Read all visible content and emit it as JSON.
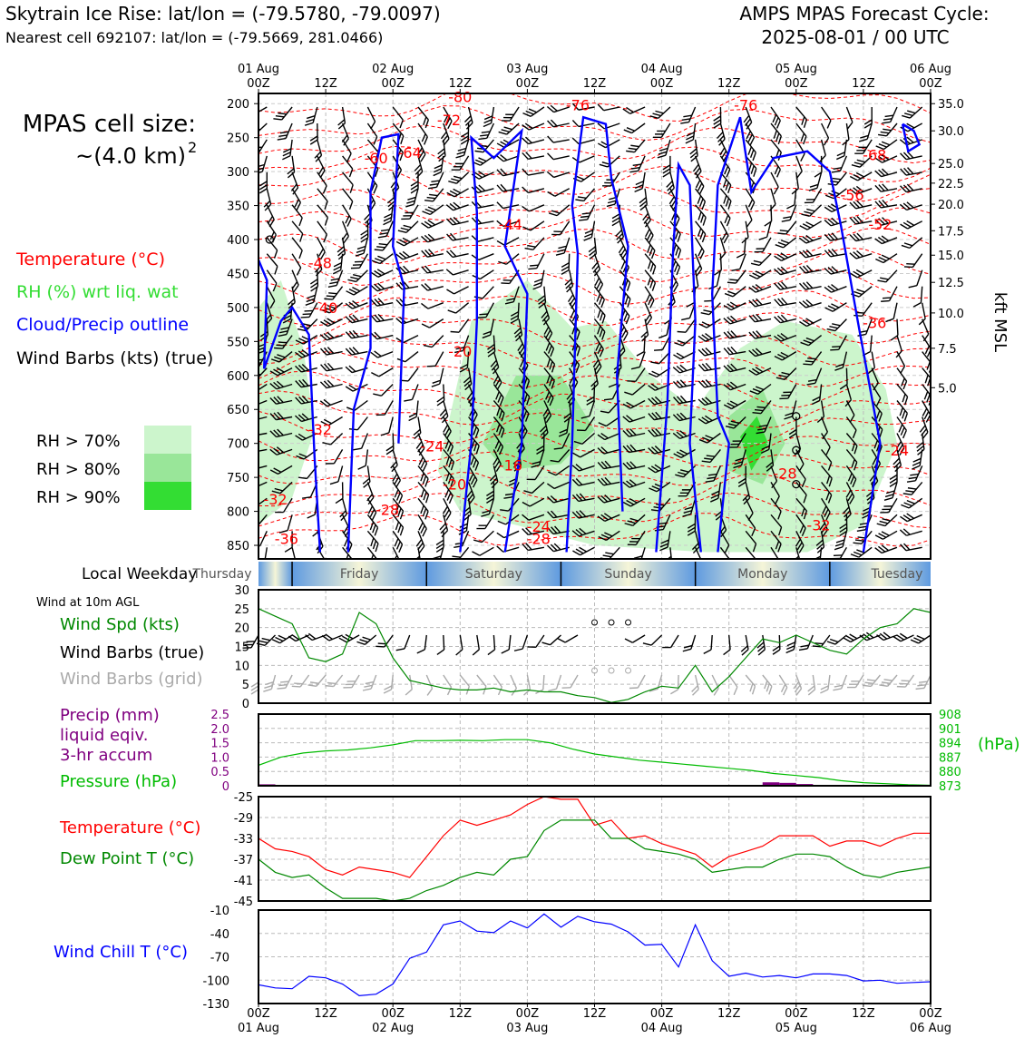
{
  "header": {
    "title_left": "Skytrain Ice Rise: lat/lon = (-79.5780, -79.0097)",
    "subtitle_left": "Nearest cell 692107: lat/lon = (-79.5669, 281.0466)",
    "title_right_1": "AMPS MPAS Forecast Cycle:",
    "title_right_2": "2025-08-01 / 00 UTC"
  },
  "left_panel": {
    "cell_size_label": "MPAS cell size:",
    "cell_size_value": "~(4.0 km)",
    "cell_size_exp": "2",
    "legend_temperature": "Temperature (°C)",
    "legend_rh": "RH (%) wrt liq. wat",
    "legend_cloud": "Cloud/Precip outline",
    "legend_wind": "Wind Barbs (kts) (true)",
    "rh_70": "RH > 70%",
    "rh_80": "RH > 80%",
    "rh_90": "RH > 90%",
    "local_weekday_label": "Local Weekday",
    "wind10m_label": "Wind at 10m AGL",
    "wind_spd_label": "Wind Spd (kts)",
    "wind_barbs_true_label": "Wind Barbs (true)",
    "wind_barbs_grid_label": "Wind Barbs (grid)",
    "precip_label_1": "Precip (mm)",
    "precip_label_2": "liquid eqiv.",
    "precip_label_3": "3-hr accum",
    "pressure_label": "Pressure (hPa)",
    "temp_label": "Temperature (°C)",
    "dewpoint_label": "Dew Point T (°C)",
    "windchill_label": "Wind Chill T (°C)"
  },
  "colors": {
    "temperature": "#ff0000",
    "rh_legend_text": "#33dd33",
    "cloud": "#0000ff",
    "rh70": "#ccf5cc",
    "rh80": "#99e699",
    "rh90": "#33dd33",
    "wind_spd": "#008800",
    "wind_grid": "#aaaaaa",
    "precip": "#800080",
    "pressure": "#00bb00",
    "dewpoint": "#008800",
    "windchill": "#0000ff"
  },
  "time_axis": {
    "top_ticks": [
      "01 Aug\n00Z",
      "12Z",
      "02 Aug\n00Z",
      "12Z",
      "03 Aug\n00Z",
      "12Z",
      "04 Aug\n00Z",
      "12Z",
      "05 Aug\n00Z",
      "12Z",
      "06 Aug\n00Z"
    ],
    "bottom_ticks": [
      "00Z\n01 Aug",
      "12Z",
      "00Z\n02 Aug",
      "12Z",
      "00Z\n03 Aug",
      "12Z",
      "00Z\n04 Aug",
      "12Z",
      "00Z\n05 Aug",
      "12Z",
      "00Z\n06 Aug"
    ]
  },
  "weekdays": [
    "Thursday",
    "Friday",
    "Saturday",
    "Sunday",
    "Monday",
    "Tuesday"
  ],
  "chart_data": [
    {
      "type": "heatmap",
      "name": "cross-section",
      "x_hours": [
        0,
        120
      ],
      "y_pressure_ticks": [
        200,
        250,
        300,
        350,
        400,
        450,
        500,
        550,
        600,
        650,
        700,
        750,
        800,
        850
      ],
      "ylim": [
        185,
        870
      ],
      "kft_ticks": [
        {
          "p": 200,
          "label": "35.0"
        },
        {
          "p": 240,
          "label": "30.0"
        },
        {
          "p": 288,
          "label": "25.0"
        },
        {
          "p": 317,
          "label": "22.5"
        },
        {
          "p": 348,
          "label": "20.0"
        },
        {
          "p": 387,
          "label": "17.5"
        },
        {
          "p": 423,
          "label": "15.0"
        },
        {
          "p": 463,
          "label": "12.5"
        },
        {
          "p": 508,
          "label": "10.0"
        },
        {
          "p": 560,
          "label": "7.5"
        },
        {
          "p": 618,
          "label": "5.0"
        }
      ],
      "ylabel_right": "kft MSL",
      "temperature_labels": [
        {
          "h": 36,
          "p": 198,
          "t": "-80"
        },
        {
          "h": 34,
          "p": 232,
          "t": "-72"
        },
        {
          "h": 57,
          "p": 210,
          "t": "-76"
        },
        {
          "h": 87,
          "p": 210,
          "t": "-76"
        },
        {
          "h": 27,
          "p": 280,
          "t": "-64"
        },
        {
          "h": 21,
          "p": 288,
          "t": "-60"
        },
        {
          "h": 110,
          "p": 283,
          "t": "-68"
        },
        {
          "h": 106,
          "p": 342,
          "t": "-56"
        },
        {
          "h": 111,
          "p": 385,
          "t": "-52"
        },
        {
          "h": 45,
          "p": 385,
          "t": "-44"
        },
        {
          "h": 11,
          "p": 442,
          "t": "-48"
        },
        {
          "h": 12,
          "p": 508,
          "t": "-40"
        },
        {
          "h": 110,
          "p": 530,
          "t": "-36"
        },
        {
          "h": 36,
          "p": 572,
          "t": "-20"
        },
        {
          "h": 11,
          "p": 687,
          "t": "-32"
        },
        {
          "h": 31,
          "p": 712,
          "t": "-24"
        },
        {
          "h": 114,
          "p": 718,
          "t": "-24"
        },
        {
          "h": 45,
          "p": 740,
          "t": "-16"
        },
        {
          "h": 35,
          "p": 768,
          "t": "-20"
        },
        {
          "h": 94,
          "p": 752,
          "t": "-28"
        },
        {
          "h": 3,
          "p": 790,
          "t": "-32"
        },
        {
          "h": 23,
          "p": 805,
          "t": "-28"
        },
        {
          "h": 5,
          "p": 848,
          "t": "-36"
        },
        {
          "h": 50,
          "p": 830,
          "t": "-24"
        },
        {
          "h": 50,
          "p": 848,
          "t": "-28"
        },
        {
          "h": 100,
          "p": 828,
          "t": "-32"
        }
      ],
      "rh_regions": [
        {
          "level": 70,
          "pts": [
            [
              0,
              500
            ],
            [
              4,
              460
            ],
            [
              8,
              560
            ],
            [
              10,
              680
            ],
            [
              6,
              780
            ],
            [
              0,
              820
            ]
          ]
        },
        {
          "level": 70,
          "pts": [
            [
              32,
              740
            ],
            [
              38,
              520
            ],
            [
              48,
              460
            ],
            [
              56,
              530
            ],
            [
              62,
              520
            ],
            [
              70,
              600
            ],
            [
              78,
              650
            ],
            [
              86,
              560
            ],
            [
              94,
              520
            ],
            [
              106,
              540
            ],
            [
              112,
              620
            ],
            [
              114,
              700
            ],
            [
              108,
              820
            ],
            [
              98,
              860
            ],
            [
              80,
              860
            ],
            [
              60,
              850
            ],
            [
              46,
              820
            ],
            [
              36,
              800
            ]
          ]
        },
        {
          "level": 80,
          "pts": [
            [
              40,
              700
            ],
            [
              46,
              600
            ],
            [
              54,
              600
            ],
            [
              60,
              680
            ],
            [
              54,
              730
            ],
            [
              44,
              740
            ]
          ]
        },
        {
          "level": 80,
          "pts": [
            [
              84,
              660
            ],
            [
              90,
              620
            ],
            [
              94,
              700
            ],
            [
              90,
              760
            ],
            [
              84,
              740
            ]
          ]
        },
        {
          "level": 90,
          "pts": [
            [
              86,
              690
            ],
            [
              89,
              660
            ],
            [
              91,
              700
            ],
            [
              88,
              740
            ]
          ]
        }
      ],
      "cloud_outlines": [
        [
          [
            0,
            430
          ],
          [
            1.5,
            460
          ],
          [
            1,
            590
          ],
          [
            4,
            520
          ],
          [
            6,
            500
          ],
          [
            9,
            540
          ],
          [
            10,
            720
          ],
          [
            11,
            860
          ]
        ],
        [
          [
            16,
            860
          ],
          [
            17,
            650
          ],
          [
            20,
            560
          ],
          [
            20,
            330
          ],
          [
            22,
            250
          ],
          [
            25,
            245
          ],
          [
            24,
            410
          ],
          [
            26,
            470
          ],
          [
            25,
            700
          ]
        ],
        [
          [
            36,
            860
          ],
          [
            38,
            700
          ],
          [
            39,
            520
          ],
          [
            39,
            360
          ],
          [
            38,
            250
          ],
          [
            42,
            280
          ],
          [
            47,
            240
          ],
          [
            44,
            410
          ],
          [
            48,
            480
          ],
          [
            47,
            700
          ],
          [
            44,
            860
          ]
        ],
        [
          [
            55,
            860
          ],
          [
            56,
            700
          ],
          [
            57,
            420
          ],
          [
            56,
            350
          ],
          [
            58,
            220
          ],
          [
            62,
            230
          ],
          [
            63,
            310
          ],
          [
            66,
            410
          ],
          [
            64,
            600
          ],
          [
            65,
            800
          ]
        ],
        [
          [
            71,
            860
          ],
          [
            73,
            640
          ],
          [
            74,
            420
          ],
          [
            75,
            290
          ],
          [
            77,
            320
          ],
          [
            78,
            520
          ],
          [
            77,
            700
          ],
          [
            79,
            860
          ]
        ],
        [
          [
            82,
            860
          ],
          [
            84,
            700
          ],
          [
            82,
            660
          ],
          [
            81,
            480
          ],
          [
            82,
            320
          ],
          [
            86,
            220
          ],
          [
            88,
            330
          ],
          [
            92,
            280
          ],
          [
            98,
            270
          ],
          [
            102,
            300
          ],
          [
            104,
            380
          ],
          [
            107,
            520
          ],
          [
            111,
            700
          ],
          [
            108,
            860
          ]
        ],
        [
          [
            115,
            230
          ],
          [
            117,
            240
          ],
          [
            118,
            260
          ],
          [
            116,
            270
          ],
          [
            115,
            230
          ]
        ]
      ],
      "calm_points": [
        {
          "h": 2,
          "p": 400
        },
        {
          "h": 96,
          "p": 660
        },
        {
          "h": 96,
          "p": 710
        },
        {
          "h": 96,
          "p": 760
        }
      ]
    },
    {
      "type": "line",
      "name": "wind-speed-10m",
      "ylabel": "Wind Spd (kts)",
      "ylim": [
        0,
        30
      ],
      "yticks": [
        0,
        5,
        10,
        15,
        20,
        25,
        30
      ],
      "x_hours": [
        0,
        3,
        6,
        9,
        12,
        15,
        18,
        21,
        24,
        27,
        30,
        33,
        36,
        39,
        42,
        45,
        48,
        51,
        54,
        57,
        60,
        63,
        66,
        69,
        72,
        75,
        78,
        81,
        84,
        87,
        90,
        93,
        96,
        99,
        102,
        105,
        108,
        111,
        114,
        117,
        120
      ],
      "values": [
        25,
        23,
        21,
        12,
        11,
        13,
        24,
        21,
        12,
        6,
        5,
        4,
        3.5,
        3.5,
        4,
        3,
        3.5,
        3,
        3,
        2,
        1.5,
        0.2,
        1,
        3,
        4.5,
        4,
        10,
        3,
        7,
        12,
        17,
        16,
        18,
        16,
        14,
        13,
        17,
        20,
        21,
        25,
        24
      ]
    },
    {
      "type": "line",
      "name": "pressure",
      "ylabel": "Pressure (hPa)",
      "ylim": [
        873,
        908
      ],
      "right_ticks": [
        873,
        880,
        887,
        894,
        901,
        908
      ],
      "precip_ylim": [
        0,
        2.5
      ],
      "precip_ticks": [
        0,
        0.5,
        1.0,
        1.5,
        2.0,
        2.5
      ],
      "x_hours": [
        0,
        4,
        8,
        12,
        16,
        20,
        24,
        28,
        32,
        36,
        40,
        44,
        48,
        52,
        56,
        60,
        64,
        68,
        72,
        76,
        80,
        84,
        88,
        92,
        96,
        100,
        104,
        108,
        112,
        116,
        120
      ],
      "values": [
        883,
        887,
        889,
        890,
        890.5,
        891.5,
        893,
        895,
        895,
        895.2,
        895,
        895.5,
        895.5,
        894,
        891,
        888.5,
        887,
        885.5,
        884.5,
        883.5,
        882.5,
        881.5,
        880.5,
        879,
        878,
        877,
        875.5,
        874.5,
        874,
        873.5,
        873.2
      ],
      "precip": [
        {
          "h": 0,
          "v": 0.05
        },
        {
          "h": 3,
          "v": 0.03
        },
        {
          "h": 90,
          "v": 0.12
        },
        {
          "h": 93,
          "v": 0.1
        },
        {
          "h": 96,
          "v": 0.06
        }
      ]
    },
    {
      "type": "line",
      "name": "temperature-dewpoint",
      "ylim": [
        -45,
        -25
      ],
      "yticks": [
        -45,
        -41,
        -37,
        -33,
        -29,
        -25
      ],
      "x_hours": [
        0,
        3,
        6,
        9,
        12,
        15,
        18,
        21,
        24,
        27,
        30,
        33,
        36,
        39,
        42,
        45,
        48,
        51,
        54,
        57,
        60,
        63,
        66,
        69,
        72,
        75,
        78,
        81,
        84,
        87,
        90,
        93,
        96,
        99,
        102,
        105,
        108,
        111,
        114,
        117,
        120
      ],
      "series": [
        {
          "name": "Temperature",
          "values": [
            -33,
            -35,
            -35.5,
            -36.5,
            -39,
            -40,
            -38.5,
            -39,
            -39.5,
            -40.5,
            -36.5,
            -32.5,
            -29.5,
            -30.5,
            -29.5,
            -28.5,
            -26.5,
            -25,
            -25.5,
            -25.5,
            -30.5,
            -29.5,
            -33,
            -32.5,
            -34,
            -35,
            -36,
            -38.5,
            -36.5,
            -35.5,
            -34.5,
            -32.5,
            -32.5,
            -32.5,
            -34.5,
            -33.5,
            -33.5,
            -34.5,
            -33,
            -32,
            -32
          ]
        },
        {
          "name": "Dew Point T",
          "values": [
            -37,
            -39.5,
            -40.5,
            -40,
            -42.5,
            -44.5,
            -44.5,
            -44.5,
            -45,
            -44.5,
            -43,
            -42,
            -40.5,
            -39.5,
            -40,
            -37,
            -36.5,
            -31.5,
            -29.5,
            -29.5,
            -29.5,
            -33,
            -33,
            -35,
            -35.5,
            -36,
            -37,
            -39.5,
            -39,
            -38.5,
            -38.5,
            -37,
            -36,
            -36,
            -36.5,
            -38.5,
            -40,
            -40.5,
            -39.5,
            -39,
            -38.5
          ]
        }
      ]
    },
    {
      "type": "line",
      "name": "wind-chill",
      "ylabel": "Wind Chill T (°C)",
      "ylim": [
        -130,
        -10
      ],
      "yticks": [
        -130,
        -100,
        -70,
        -40,
        -10
      ],
      "x_hours": [
        0,
        3,
        6,
        9,
        12,
        15,
        18,
        21,
        24,
        27,
        30,
        33,
        36,
        39,
        42,
        45,
        48,
        51,
        54,
        57,
        60,
        63,
        66,
        69,
        72,
        75,
        78,
        81,
        84,
        87,
        90,
        93,
        96,
        99,
        102,
        105,
        108,
        111,
        114,
        117,
        120
      ],
      "values": [
        -106,
        -110,
        -111,
        -95,
        -97,
        -105,
        -120,
        -118,
        -105,
        -72,
        -64,
        -29,
        -24,
        -37,
        -39,
        -24,
        -33,
        -15,
        -32,
        -18,
        -25,
        -28,
        -38,
        -55,
        -54,
        -83,
        -29,
        -75,
        -95,
        -91,
        -96,
        -94,
        -97,
        -92,
        -92,
        -94,
        -101,
        -100,
        -104,
        -103,
        -102
      ]
    }
  ]
}
